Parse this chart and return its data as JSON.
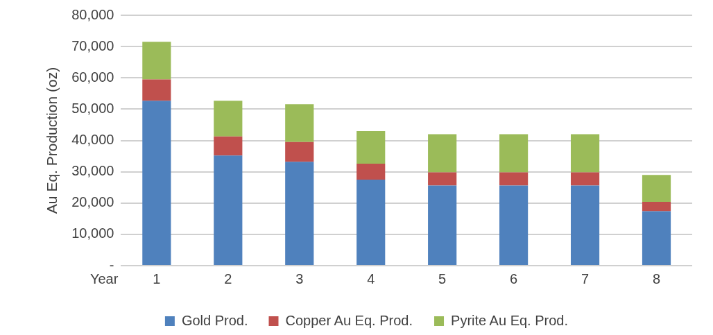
{
  "chart_data": {
    "type": "bar",
    "stacked": true,
    "xlabel": "Year",
    "ylabel": "Au Eq. Production (oz)",
    "categories": [
      "1",
      "2",
      "3",
      "4",
      "5",
      "6",
      "7",
      "8"
    ],
    "series": [
      {
        "name": "Gold Prod.",
        "color": "#4f81bd",
        "values": [
          52700,
          35200,
          33200,
          27500,
          25600,
          25600,
          25600,
          17400
        ]
      },
      {
        "name": "Copper Au Eq. Prod.",
        "color": "#c0504d",
        "values": [
          6800,
          6100,
          6300,
          5100,
          4200,
          4200,
          4200,
          3000
        ]
      },
      {
        "name": "Pyrite Au Eq. Prod.",
        "color": "#9bbb59",
        "values": [
          12000,
          11400,
          12100,
          10400,
          12200,
          12200,
          12200,
          8600
        ]
      }
    ],
    "ylim": [
      0,
      80000
    ],
    "yticks": [
      {
        "value": 0,
        "label": "-"
      },
      {
        "value": 10000,
        "label": "10,000"
      },
      {
        "value": 20000,
        "label": "20,000"
      },
      {
        "value": 30000,
        "label": "30,000"
      },
      {
        "value": 40000,
        "label": "40,000"
      },
      {
        "value": 50000,
        "label": "50,000"
      },
      {
        "value": 60000,
        "label": "60,000"
      },
      {
        "value": 70000,
        "label": "70,000"
      },
      {
        "value": 80000,
        "label": "80,000"
      }
    ],
    "grid": "y",
    "legend": "bottom"
  }
}
